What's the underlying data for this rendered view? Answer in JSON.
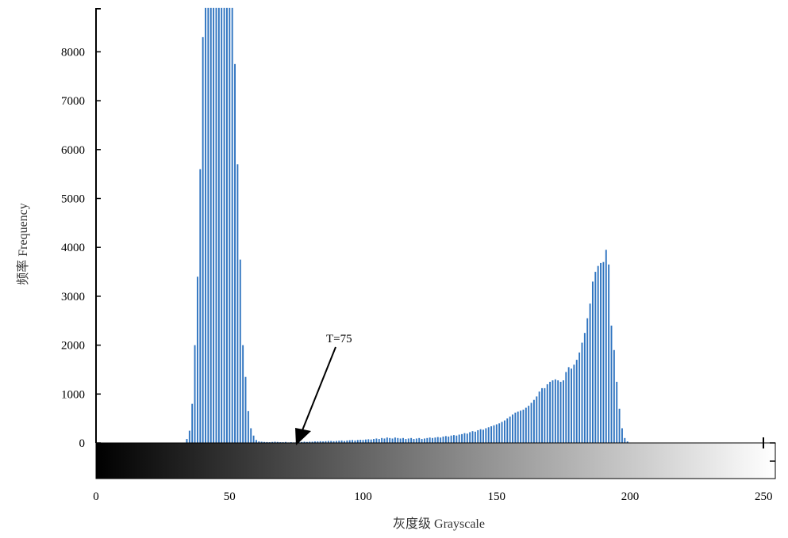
{
  "chart_data": {
    "type": "bar",
    "xlabel": "灰度级 Grayscale",
    "ylabel": "频率 Frequency",
    "xlim": [
      0,
      255
    ],
    "ylim": [
      0,
      8900
    ],
    "x_ticks": [
      "0",
      "50",
      "100",
      "150",
      "200",
      "250"
    ],
    "x_tick_values": [
      0,
      50,
      100,
      150,
      200,
      250
    ],
    "y_ticks": [
      "0",
      "1000",
      "2000",
      "3000",
      "4000",
      "5000",
      "6000",
      "7000",
      "8000"
    ],
    "y_tick_values": [
      0,
      1000,
      2000,
      3000,
      4000,
      5000,
      6000,
      7000,
      8000
    ],
    "grid": false,
    "bar_color": "#2f74c0",
    "annotation": {
      "text": "T=75",
      "x": 75,
      "y": 0
    },
    "gradient_bar": {
      "from": "#000000",
      "to": "#ffffff",
      "range": [
        0,
        255
      ]
    },
    "bins": [
      [
        34,
        80
      ],
      [
        35,
        250
      ],
      [
        36,
        800
      ],
      [
        37,
        2000
      ],
      [
        38,
        3400
      ],
      [
        39,
        5600
      ],
      [
        40,
        8300
      ],
      [
        41,
        8900
      ],
      [
        42,
        8900
      ],
      [
        43,
        8900
      ],
      [
        44,
        8900
      ],
      [
        45,
        8900
      ],
      [
        46,
        8900
      ],
      [
        47,
        8900
      ],
      [
        48,
        8900
      ],
      [
        49,
        8900
      ],
      [
        50,
        8900
      ],
      [
        51,
        8900
      ],
      [
        52,
        7750
      ],
      [
        53,
        5700
      ],
      [
        54,
        3750
      ],
      [
        55,
        2000
      ],
      [
        56,
        1350
      ],
      [
        57,
        650
      ],
      [
        58,
        300
      ],
      [
        59,
        150
      ],
      [
        60,
        60
      ],
      [
        61,
        30
      ],
      [
        62,
        25
      ],
      [
        63,
        20
      ],
      [
        64,
        18
      ],
      [
        65,
        15
      ],
      [
        66,
        20
      ],
      [
        67,
        25
      ],
      [
        68,
        20
      ],
      [
        69,
        15
      ],
      [
        70,
        15
      ],
      [
        71,
        20
      ],
      [
        72,
        10
      ],
      [
        73,
        15
      ],
      [
        74,
        10
      ],
      [
        75,
        15
      ],
      [
        76,
        15
      ],
      [
        77,
        20
      ],
      [
        78,
        25
      ],
      [
        79,
        20
      ],
      [
        80,
        25
      ],
      [
        81,
        25
      ],
      [
        82,
        30
      ],
      [
        83,
        30
      ],
      [
        84,
        35
      ],
      [
        85,
        30
      ],
      [
        86,
        35
      ],
      [
        87,
        40
      ],
      [
        88,
        40
      ],
      [
        89,
        35
      ],
      [
        90,
        40
      ],
      [
        91,
        45
      ],
      [
        92,
        50
      ],
      [
        93,
        40
      ],
      [
        94,
        50
      ],
      [
        95,
        55
      ],
      [
        96,
        60
      ],
      [
        97,
        50
      ],
      [
        98,
        60
      ],
      [
        99,
        65
      ],
      [
        100,
        60
      ],
      [
        101,
        70
      ],
      [
        102,
        75
      ],
      [
        103,
        70
      ],
      [
        104,
        80
      ],
      [
        105,
        90
      ],
      [
        106,
        80
      ],
      [
        107,
        100
      ],
      [
        108,
        90
      ],
      [
        109,
        110
      ],
      [
        110,
        100
      ],
      [
        111,
        90
      ],
      [
        112,
        110
      ],
      [
        113,
        100
      ],
      [
        114,
        90
      ],
      [
        115,
        100
      ],
      [
        116,
        80
      ],
      [
        117,
        90
      ],
      [
        118,
        100
      ],
      [
        119,
        80
      ],
      [
        120,
        90
      ],
      [
        121,
        100
      ],
      [
        122,
        80
      ],
      [
        123,
        90
      ],
      [
        124,
        100
      ],
      [
        125,
        110
      ],
      [
        126,
        100
      ],
      [
        127,
        110
      ],
      [
        128,
        120
      ],
      [
        129,
        110
      ],
      [
        130,
        130
      ],
      [
        131,
        140
      ],
      [
        132,
        130
      ],
      [
        133,
        150
      ],
      [
        134,
        160
      ],
      [
        135,
        150
      ],
      [
        136,
        170
      ],
      [
        137,
        180
      ],
      [
        138,
        200
      ],
      [
        139,
        190
      ],
      [
        140,
        220
      ],
      [
        141,
        240
      ],
      [
        142,
        230
      ],
      [
        143,
        260
      ],
      [
        144,
        280
      ],
      [
        145,
        270
      ],
      [
        146,
        300
      ],
      [
        147,
        320
      ],
      [
        148,
        340
      ],
      [
        149,
        360
      ],
      [
        150,
        380
      ],
      [
        151,
        400
      ],
      [
        152,
        430
      ],
      [
        153,
        460
      ],
      [
        154,
        500
      ],
      [
        155,
        540
      ],
      [
        156,
        580
      ],
      [
        157,
        620
      ],
      [
        158,
        640
      ],
      [
        159,
        660
      ],
      [
        160,
        680
      ],
      [
        161,
        720
      ],
      [
        162,
        760
      ],
      [
        163,
        820
      ],
      [
        164,
        880
      ],
      [
        165,
        950
      ],
      [
        166,
        1050
      ],
      [
        167,
        1120
      ],
      [
        168,
        1120
      ],
      [
        169,
        1200
      ],
      [
        170,
        1250
      ],
      [
        171,
        1280
      ],
      [
        172,
        1300
      ],
      [
        173,
        1280
      ],
      [
        174,
        1250
      ],
      [
        175,
        1280
      ],
      [
        176,
        1450
      ],
      [
        177,
        1550
      ],
      [
        178,
        1520
      ],
      [
        179,
        1600
      ],
      [
        180,
        1700
      ],
      [
        181,
        1850
      ],
      [
        182,
        2050
      ],
      [
        183,
        2250
      ],
      [
        184,
        2550
      ],
      [
        185,
        2850
      ],
      [
        186,
        3300
      ],
      [
        187,
        3500
      ],
      [
        188,
        3620
      ],
      [
        189,
        3680
      ],
      [
        190,
        3700
      ],
      [
        191,
        3950
      ],
      [
        192,
        3650
      ],
      [
        193,
        2400
      ],
      [
        194,
        1900
      ],
      [
        195,
        1250
      ],
      [
        196,
        700
      ],
      [
        197,
        300
      ],
      [
        198,
        100
      ],
      [
        199,
        30
      ]
    ]
  }
}
